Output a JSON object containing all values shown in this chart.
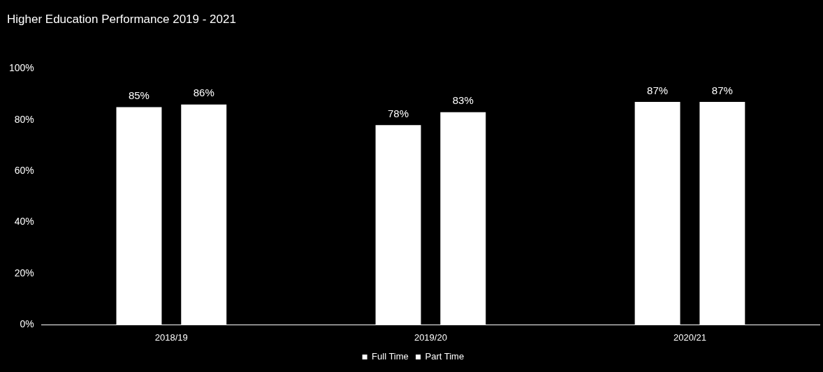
{
  "chart_data": {
    "type": "bar",
    "title": "Higher Education Performance 2019 - 2021",
    "categories": [
      "2018/19",
      "2019/20",
      "2020/21"
    ],
    "series": [
      {
        "name": "Full Time",
        "color": "#ffffff",
        "values": [
          85,
          78,
          87
        ],
        "value_labels": [
          "85%",
          "78%",
          "87%"
        ]
      },
      {
        "name": "Part Time",
        "color": "#ffffff",
        "values": [
          86,
          83,
          87
        ],
        "value_labels": [
          "86%",
          "83%",
          "87%"
        ]
      }
    ],
    "ylim": [
      0,
      100
    ],
    "yticks": [
      {
        "value": 0,
        "label": "0%"
      },
      {
        "value": 20,
        "label": "20%"
      },
      {
        "value": 40,
        "label": "40%"
      },
      {
        "value": 60,
        "label": "60%"
      },
      {
        "value": 80,
        "label": "80%"
      },
      {
        "value": 100,
        "label": "100%"
      }
    ],
    "grid": false,
    "legend": "bottom"
  }
}
